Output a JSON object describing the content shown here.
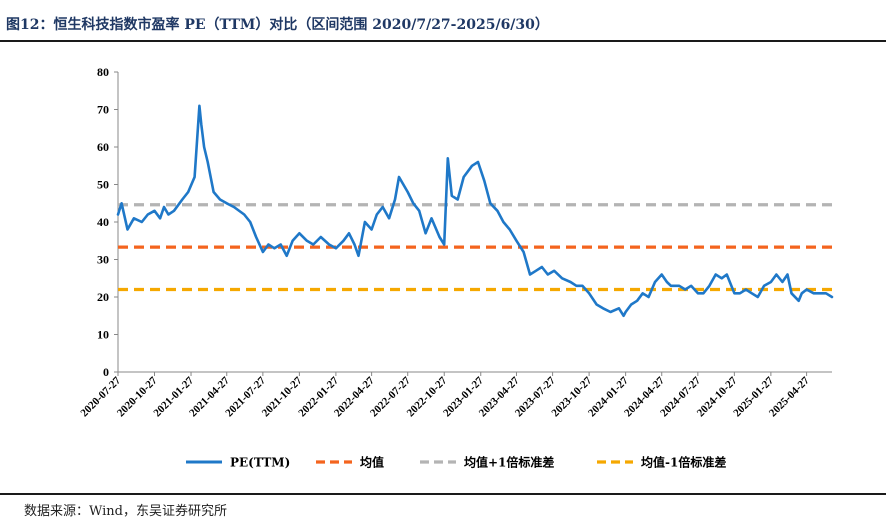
{
  "figure": {
    "title": "图12：恒生科技指数市盈率 PE（TTM）对比（区间范围 2020/7/27-2025/6/30）",
    "source": "数据来源：Wind，东吴证券研究所"
  },
  "colors": {
    "title": "#1f3864",
    "pe": "#1f78c8",
    "mean": "#f4641e",
    "plus1": "#b4b4b4",
    "minus1": "#f5a800"
  },
  "chart_data": {
    "type": "line",
    "title": "",
    "xlabel": "",
    "ylabel": "",
    "ylim": [
      0,
      80
    ],
    "yticks": [
      0,
      10,
      20,
      30,
      40,
      50,
      60,
      70,
      80
    ],
    "xlim": [
      "2020-07-27",
      "2025-06-30"
    ],
    "xticks": [
      "2020-07-27",
      "2020-10-27",
      "2021-01-27",
      "2021-04-27",
      "2021-07-27",
      "2021-10-27",
      "2022-01-27",
      "2022-04-27",
      "2022-07-27",
      "2022-10-27",
      "2023-01-27",
      "2023-04-27",
      "2023-07-27",
      "2023-10-27",
      "2024-01-27",
      "2024-04-27",
      "2024-07-27",
      "2024-10-27",
      "2025-01-27",
      "2025-04-27"
    ],
    "legend_position": "bottom",
    "grid": false,
    "series": [
      {
        "name": "PE(TTM)",
        "style": "solid",
        "x": [
          "2020-07-27",
          "2020-08-05",
          "2020-08-20",
          "2020-09-05",
          "2020-09-25",
          "2020-10-10",
          "2020-10-27",
          "2020-11-10",
          "2020-11-20",
          "2020-12-01",
          "2020-12-15",
          "2021-01-05",
          "2021-01-20",
          "2021-02-05",
          "2021-02-17",
          "2021-02-22",
          "2021-03-01",
          "2021-03-10",
          "2021-03-25",
          "2021-04-10",
          "2021-04-27",
          "2021-05-15",
          "2021-06-10",
          "2021-06-25",
          "2021-07-10",
          "2021-07-27",
          "2021-08-10",
          "2021-08-25",
          "2021-09-10",
          "2021-09-25",
          "2021-10-10",
          "2021-10-27",
          "2021-11-15",
          "2021-12-01",
          "2021-12-20",
          "2022-01-10",
          "2022-01-27",
          "2022-02-15",
          "2022-03-01",
          "2022-03-15",
          "2022-03-25",
          "2022-04-10",
          "2022-04-27",
          "2022-05-10",
          "2022-05-25",
          "2022-06-10",
          "2022-06-25",
          "2022-07-05",
          "2022-07-27",
          "2022-08-10",
          "2022-08-25",
          "2022-09-10",
          "2022-09-25",
          "2022-10-15",
          "2022-10-27",
          "2022-11-05",
          "2022-11-15",
          "2022-11-30",
          "2022-12-15",
          "2023-01-05",
          "2023-01-20",
          "2023-02-05",
          "2023-02-20",
          "2023-03-10",
          "2023-03-25",
          "2023-04-10",
          "2023-04-27",
          "2023-05-15",
          "2023-05-31",
          "2023-06-15",
          "2023-06-30",
          "2023-07-15",
          "2023-07-31",
          "2023-08-20",
          "2023-09-10",
          "2023-09-25",
          "2023-10-10",
          "2023-10-27",
          "2023-11-15",
          "2023-12-01",
          "2023-12-20",
          "2024-01-10",
          "2024-01-22",
          "2024-01-27",
          "2024-02-10",
          "2024-02-25",
          "2024-03-10",
          "2024-03-25",
          "2024-04-10",
          "2024-04-27",
          "2024-05-10",
          "2024-05-20",
          "2024-06-10",
          "2024-06-25",
          "2024-07-10",
          "2024-07-27",
          "2024-08-10",
          "2024-08-25",
          "2024-09-10",
          "2024-09-25",
          "2024-10-08",
          "2024-10-27",
          "2024-11-10",
          "2024-11-25",
          "2024-12-10",
          "2024-12-25",
          "2025-01-10",
          "2025-01-27",
          "2025-02-10",
          "2025-02-25",
          "2025-03-10",
          "2025-03-20",
          "2025-04-07",
          "2025-04-15",
          "2025-04-27",
          "2025-05-15",
          "2025-05-31",
          "2025-06-15",
          "2025-06-30"
        ],
        "values": [
          42,
          45,
          38,
          41,
          40,
          42,
          43,
          41,
          44,
          42,
          43,
          46,
          48,
          52,
          71,
          66,
          60,
          56,
          48,
          46,
          45,
          44,
          42,
          40,
          36,
          32,
          34,
          33,
          34,
          31,
          35,
          37,
          35,
          34,
          36,
          34,
          33,
          35,
          37,
          34,
          31,
          40,
          38,
          42,
          44,
          41,
          46,
          52,
          48,
          45,
          43,
          37,
          41,
          36,
          34,
          57,
          47,
          46,
          52,
          55,
          56,
          51,
          45,
          43,
          40,
          38,
          35,
          32,
          26,
          27,
          28,
          26,
          27,
          25,
          24,
          23,
          23,
          21,
          18,
          17,
          16,
          17,
          15,
          16,
          18,
          19,
          21,
          20,
          24,
          26,
          24,
          23,
          23,
          22,
          23,
          21,
          21,
          23,
          26,
          25,
          26,
          21,
          21,
          22,
          21,
          20,
          23,
          24,
          26,
          24,
          26,
          21,
          19,
          21,
          22,
          21,
          21,
          21,
          20
        ]
      },
      {
        "name": "均值",
        "style": "dashed",
        "value": 33.3
      },
      {
        "name": "均值+1倍标准差",
        "style": "dashed",
        "value": 44.6
      },
      {
        "name": "均值-1倍标准差",
        "style": "dashed",
        "value": 22.0
      }
    ]
  }
}
